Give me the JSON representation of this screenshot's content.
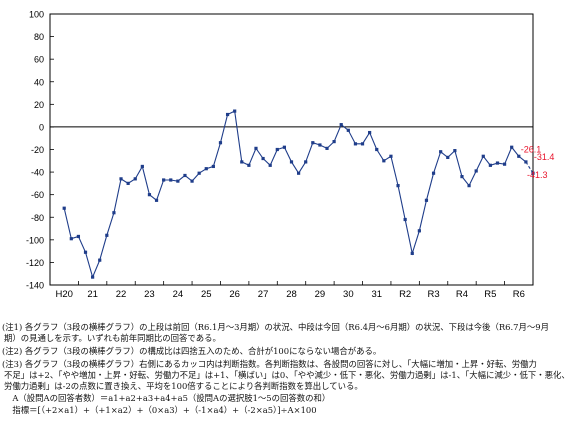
{
  "chart_data": {
    "type": "line",
    "title": "",
    "xlabel": "",
    "ylabel": "",
    "ylim": [
      -140,
      100
    ],
    "yticks": [
      100,
      80,
      60,
      40,
      20,
      0,
      -20,
      -40,
      -60,
      -80,
      -100,
      -120,
      -140
    ],
    "xtick_labels": [
      "H20",
      "21",
      "22",
      "23",
      "24",
      "25",
      "26",
      "27",
      "28",
      "29",
      "30",
      "31",
      "R2",
      "R3",
      "R4",
      "R5",
      "R6"
    ],
    "grid": false,
    "series": [
      {
        "name": "",
        "color": "#1f3d8a",
        "x": [
          0,
          0.25,
          0.5,
          0.75,
          1,
          1.25,
          1.5,
          1.75,
          2,
          2.25,
          2.5,
          2.75,
          3,
          3.25,
          3.5,
          3.75,
          4,
          4.25,
          4.5,
          4.75,
          5,
          5.25,
          5.5,
          5.75,
          6,
          6.25,
          6.5,
          6.75,
          7,
          7.25,
          7.5,
          7.75,
          8,
          8.25,
          8.5,
          8.75,
          9,
          9.25,
          9.5,
          9.75,
          10,
          10.25,
          10.5,
          10.75,
          11,
          11.25,
          11.5,
          11.75,
          12,
          12.25,
          12.5,
          12.75,
          13,
          13.25,
          13.5,
          13.75,
          14,
          14.25,
          14.5,
          14.75,
          15,
          15.25,
          15.5,
          15.75,
          16,
          16.25
        ],
        "values": [
          -72,
          -99,
          -97,
          -111,
          -133,
          -118,
          -96,
          -76,
          -46,
          -50,
          -46,
          -35,
          -60,
          -65,
          -47,
          -47,
          -48,
          -43,
          -48,
          -41,
          -37,
          -35,
          -14,
          11,
          14,
          -31,
          -34,
          -19,
          -28,
          -34,
          -20,
          -18,
          -31,
          -41,
          -31,
          -14,
          -16,
          -19,
          -13,
          2,
          -3,
          -15,
          -15,
          -5,
          -20,
          -30,
          -26,
          -52,
          -82,
          -112,
          -92,
          -65,
          -41,
          -22,
          -27,
          -21,
          -44,
          -52,
          -39,
          -26,
          -34,
          -32,
          -33,
          -18,
          -26,
          -31
        ]
      },
      {
        "name": "",
        "color": "#1f3d8a",
        "dashed": true,
        "x": [
          16.25,
          16.5
        ],
        "values": [
          -31,
          -41
        ]
      }
    ],
    "annotations": [
      "-26.1",
      "-31.4",
      "-41.3"
    ],
    "annotation_color": "#e8132b"
  },
  "notes": [
    "(注1) 各グラフ（3段の横棒グラフ）の上段は前回（R6.1月～3月期）の状況、中段は今回（R6.4月～6月期）の状況、下段は今後（R6.7月～9月",
    "期）の見通しを示す。いずれも前年同期比の回答である。",
    "(注2) 各グラフ（3段の横棒グラフ）の構成比は四捨五入のため、合計が100にならない場合がある。",
    "(注3) 各グラフ（3段の横棒グラフ）右側にあるカッコ内は判断指数。各判断指数は、各設問の回答に対し、「大幅に増加・上昇・好転、労働力",
    "不足」は+2、「やや増加・上昇・好転、労働力不足」は+1、「横ばい」は0、「やや減少・低下・悪化、労働力過剰」は-1、「大幅に減少・低下・悪化、",
    "労働力過剰」は-2の点数に置き換え、平均を100倍することにより各判断指数を算出している。",
    "　A（設問Aの回答者数）＝a1+a2+a3+a4+a5（設問Aの選択肢1～5の回答数の和）",
    "　指標＝[（+2×a1）+（+1×a2）+（0×a3）+（-1×a4）+（-2×a5）]÷A×100"
  ]
}
